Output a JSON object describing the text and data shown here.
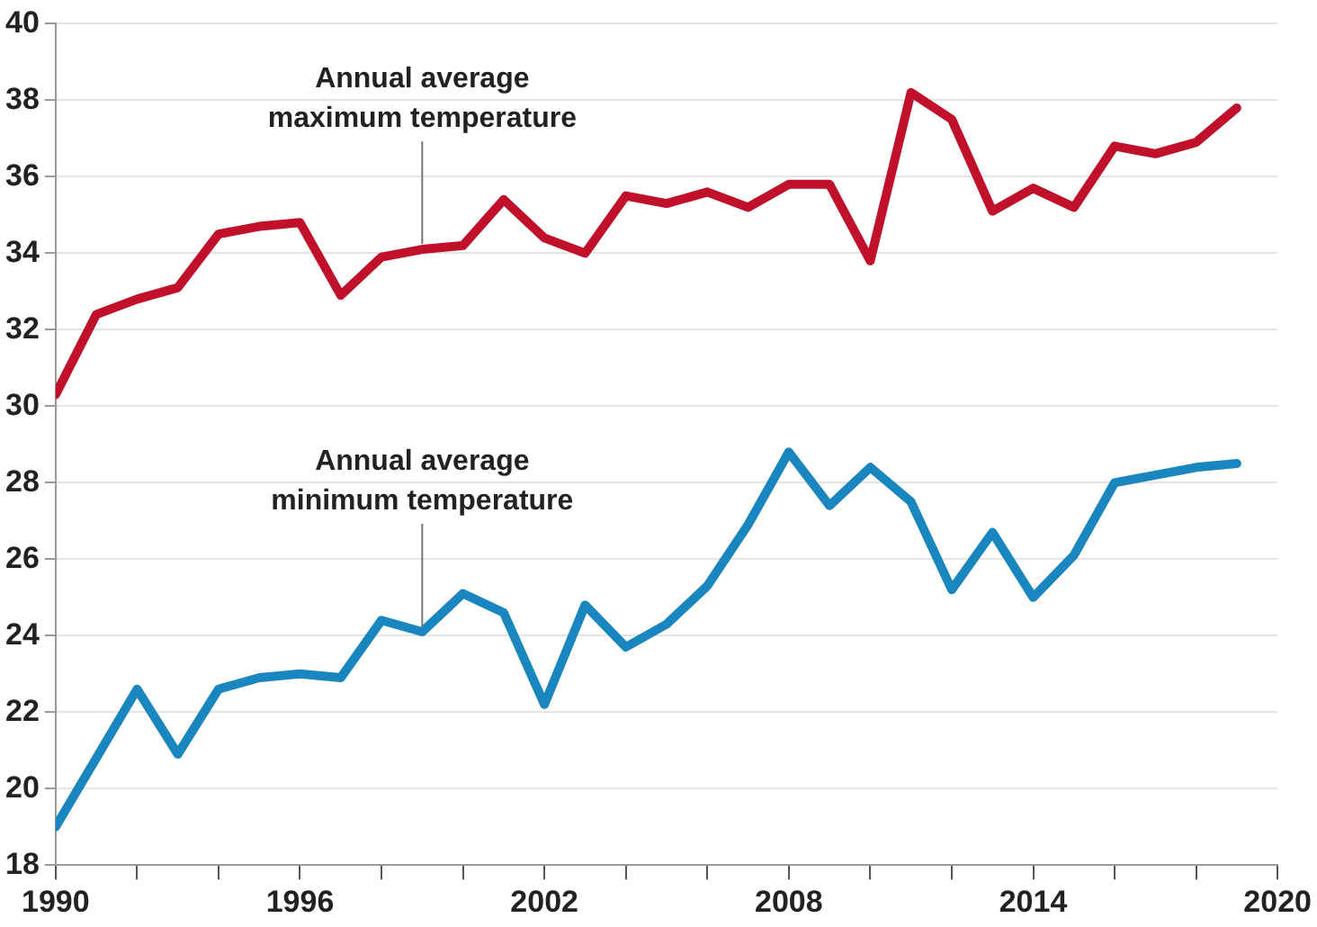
{
  "chart_data": {
    "type": "line",
    "x": [
      1990,
      1991,
      1992,
      1993,
      1994,
      1995,
      1996,
      1997,
      1998,
      1999,
      2000,
      2001,
      2002,
      2003,
      2004,
      2005,
      2006,
      2007,
      2008,
      2009,
      2010,
      2011,
      2012,
      2013,
      2014,
      2015,
      2016,
      2017,
      2018,
      2019
    ],
    "series": [
      {
        "color": "#c0102a",
        "values": [
          30.3,
          32.4,
          32.8,
          33.1,
          34.5,
          34.7,
          34.8,
          32.9,
          33.9,
          34.1,
          34.2,
          35.4,
          34.4,
          34.0,
          35.5,
          35.3,
          35.6,
          35.2,
          35.8,
          35.8,
          33.8,
          38.2,
          37.5,
          35.1,
          35.7,
          35.2,
          36.8,
          36.6,
          36.9,
          37.8
        ]
      },
      {
        "color": "#1a86bf",
        "values": [
          19.0,
          20.8,
          22.6,
          20.9,
          22.6,
          22.9,
          23.0,
          22.9,
          24.4,
          24.1,
          25.1,
          24.6,
          22.2,
          24.8,
          23.7,
          24.3,
          25.3,
          26.9,
          28.8,
          27.4,
          28.4,
          27.5,
          25.2,
          26.7,
          25.0,
          26.1,
          28.0,
          28.2,
          28.4,
          28.5
        ]
      }
    ],
    "xlim": [
      1990,
      2020
    ],
    "xticks": [
      1990,
      {
        "value": 1992,
        "label": null
      },
      {
        "value": 1994,
        "label": null
      },
      1996,
      {
        "value": 1998,
        "label": null
      },
      {
        "value": 2000,
        "label": null
      },
      2002,
      {
        "value": 2004,
        "label": null
      },
      {
        "value": 2006,
        "label": null
      },
      2008,
      {
        "value": 2010,
        "label": null
      },
      {
        "value": 2012,
        "label": null
      },
      2014,
      {
        "value": 2016,
        "label": null
      },
      {
        "value": 2018,
        "label": null
      },
      2020
    ],
    "ylim": [
      18,
      40
    ],
    "yticks": [
      18,
      20,
      22,
      24,
      26,
      28,
      30,
      32,
      34,
      36,
      38,
      40
    ],
    "grid": "y",
    "marker": "none",
    "line_style": "solid",
    "legend": false,
    "annotations": [
      {
        "text": "Annual average\nmaximum temperature",
        "x": 1999,
        "y": 34.1
      },
      {
        "text": "Annual average\nminimum temperature",
        "x": 1999,
        "y": 24.1
      }
    ]
  }
}
